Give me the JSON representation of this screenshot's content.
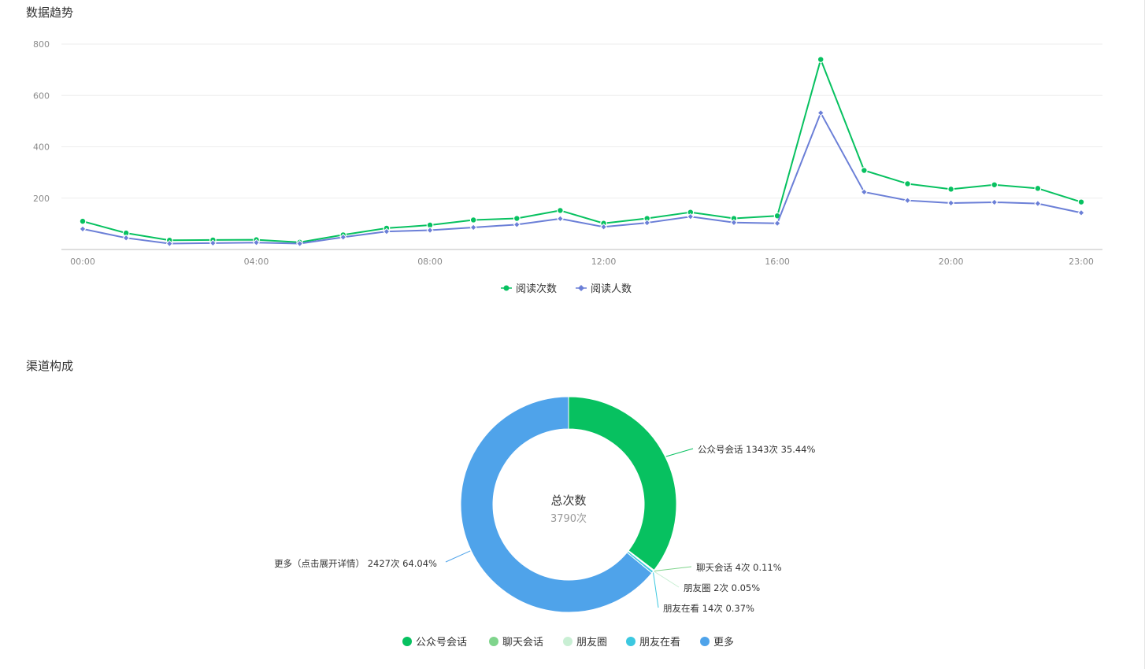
{
  "trend": {
    "title": "数据趋势",
    "chart_data": {
      "type": "line",
      "x": [
        "00:00",
        "01:00",
        "02:00",
        "03:00",
        "04:00",
        "05:00",
        "06:00",
        "07:00",
        "08:00",
        "09:00",
        "10:00",
        "11:00",
        "12:00",
        "13:00",
        "14:00",
        "15:00",
        "16:00",
        "17:00",
        "18:00",
        "19:00",
        "20:00",
        "21:00",
        "22:00",
        "23:00"
      ],
      "x_tick_labels": [
        "00:00",
        "04:00",
        "08:00",
        "12:00",
        "16:00",
        "20:00",
        "23:00"
      ],
      "ylim": [
        0,
        800
      ],
      "y_ticks": [
        200,
        400,
        600,
        800
      ],
      "grid": true,
      "legend": "bottom-center",
      "series": [
        {
          "name": "阅读次数",
          "color": "#07c160",
          "marker": "circle",
          "values": [
            110,
            64,
            36,
            37,
            38,
            28,
            57,
            83,
            95,
            115,
            121,
            152,
            102,
            121,
            145,
            121,
            131,
            740,
            308,
            256,
            235,
            252,
            238,
            185
          ]
        },
        {
          "name": "阅读人数",
          "color": "#6b7fd7",
          "marker": "diamond",
          "values": [
            80,
            45,
            23,
            25,
            27,
            23,
            48,
            70,
            75,
            86,
            97,
            120,
            88,
            104,
            128,
            105,
            102,
            532,
            224,
            191,
            181,
            184,
            179,
            143
          ]
        }
      ]
    }
  },
  "channel": {
    "title": "渠道构成",
    "center_title": "总次数",
    "center_value": "3790次",
    "chart_data": {
      "type": "pie",
      "donut": true,
      "total": 3790,
      "legend": "bottom-center",
      "slices": [
        {
          "name": "公众号会话",
          "value": 1343,
          "percent": 35.44,
          "color": "#07c160",
          "label": "公众号会话 1343次 35.44%"
        },
        {
          "name": "聊天会话",
          "value": 4,
          "percent": 0.11,
          "color": "#7fd48c",
          "label": "聊天会话 4次 0.11%"
        },
        {
          "name": "朋友圈",
          "value": 2,
          "percent": 0.05,
          "color": "#c9efd4",
          "label": "朋友圈 2次 0.05%"
        },
        {
          "name": "朋友在看",
          "value": 14,
          "percent": 0.37,
          "color": "#3cc8e0",
          "label": "朋友在看 14次 0.37%"
        },
        {
          "name": "更多",
          "value": 2427,
          "percent": 64.04,
          "color": "#4fa3ea",
          "label": "更多（点击展开详情） 2427次 64.04%"
        }
      ]
    }
  }
}
